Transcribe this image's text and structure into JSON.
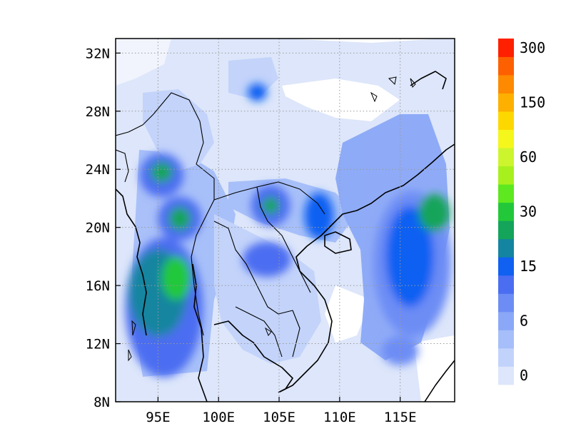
{
  "map": {
    "lon_min": 91.5,
    "lon_max": 119.5,
    "lat_min": 8,
    "lat_max": 33,
    "x_ticks": [
      {
        "lon": 95,
        "label": "95E"
      },
      {
        "lon": 100,
        "label": "100E"
      },
      {
        "lon": 105,
        "label": "105E"
      },
      {
        "lon": 110,
        "label": "110E"
      },
      {
        "lon": 115,
        "label": "115E"
      }
    ],
    "y_ticks": [
      {
        "lat": 8,
        "label": "8N"
      },
      {
        "lat": 12,
        "label": "12N"
      },
      {
        "lat": 16,
        "label": "16N"
      },
      {
        "lat": 20,
        "label": "20N"
      },
      {
        "lat": 24,
        "label": "24N"
      },
      {
        "lat": 28,
        "label": "28N"
      },
      {
        "lat": 32,
        "label": "32N"
      }
    ],
    "gridlines": true,
    "field_blobs": [
      {
        "lon": 95.5,
        "lat": 14.5,
        "rx": 3.2,
        "ry": 4.8,
        "level": 5
      },
      {
        "lon": 95.0,
        "lat": 15.5,
        "rx": 2.4,
        "ry": 3.0,
        "level": 7
      },
      {
        "lon": 96.5,
        "lat": 16.5,
        "rx": 1.2,
        "ry": 1.5,
        "level": 9
      },
      {
        "lon": 95.3,
        "lat": 23.6,
        "rx": 1.8,
        "ry": 1.5,
        "level": 5
      },
      {
        "lon": 95.3,
        "lat": 23.8,
        "rx": 0.9,
        "ry": 0.7,
        "level": 8
      },
      {
        "lon": 96.8,
        "lat": 20.6,
        "rx": 1.8,
        "ry": 1.5,
        "level": 5
      },
      {
        "lon": 96.8,
        "lat": 20.6,
        "rx": 0.9,
        "ry": 0.8,
        "level": 8
      },
      {
        "lon": 104.3,
        "lat": 21.5,
        "rx": 1.6,
        "ry": 1.4,
        "level": 5
      },
      {
        "lon": 104.3,
        "lat": 21.5,
        "rx": 0.7,
        "ry": 0.6,
        "level": 8
      },
      {
        "lon": 108.3,
        "lat": 20.8,
        "rx": 1.2,
        "ry": 1.6,
        "level": 6
      },
      {
        "lon": 104.0,
        "lat": 17.8,
        "rx": 2.0,
        "ry": 1.2,
        "level": 5
      },
      {
        "lon": 103.2,
        "lat": 29.3,
        "rx": 0.8,
        "ry": 0.6,
        "level": 6
      },
      {
        "lon": 116.0,
        "lat": 17.5,
        "rx": 3.2,
        "ry": 5.0,
        "level": 4
      },
      {
        "lon": 115.8,
        "lat": 18.0,
        "rx": 2.0,
        "ry": 3.5,
        "level": 6
      },
      {
        "lon": 117.8,
        "lat": 21.0,
        "rx": 1.3,
        "ry": 1.3,
        "level": 8
      },
      {
        "lon": 115.0,
        "lat": 11.5,
        "rx": 1.5,
        "ry": 1.0,
        "level": 4
      }
    ]
  },
  "colorbar": {
    "colors": [
      "#dde6fa",
      "#c2d3fb",
      "#a6bef9",
      "#8aa8f7",
      "#6d8df5",
      "#4b6df1",
      "#1060f2",
      "#1385a0",
      "#14a45a",
      "#22c83a",
      "#5ee820",
      "#a7f01e",
      "#ccf52e",
      "#f4f61c",
      "#fcd800",
      "#fdb000",
      "#fd8a00",
      "#fd6000",
      "#fe2000"
    ],
    "tick_labels": [
      {
        "index": 0,
        "label": "0"
      },
      {
        "index": 3,
        "label": "6"
      },
      {
        "index": 6,
        "label": "15"
      },
      {
        "index": 9,
        "label": "30"
      },
      {
        "index": 12,
        "label": "60"
      },
      {
        "index": 15,
        "label": "150"
      },
      {
        "index": 18,
        "label": "300"
      }
    ]
  }
}
